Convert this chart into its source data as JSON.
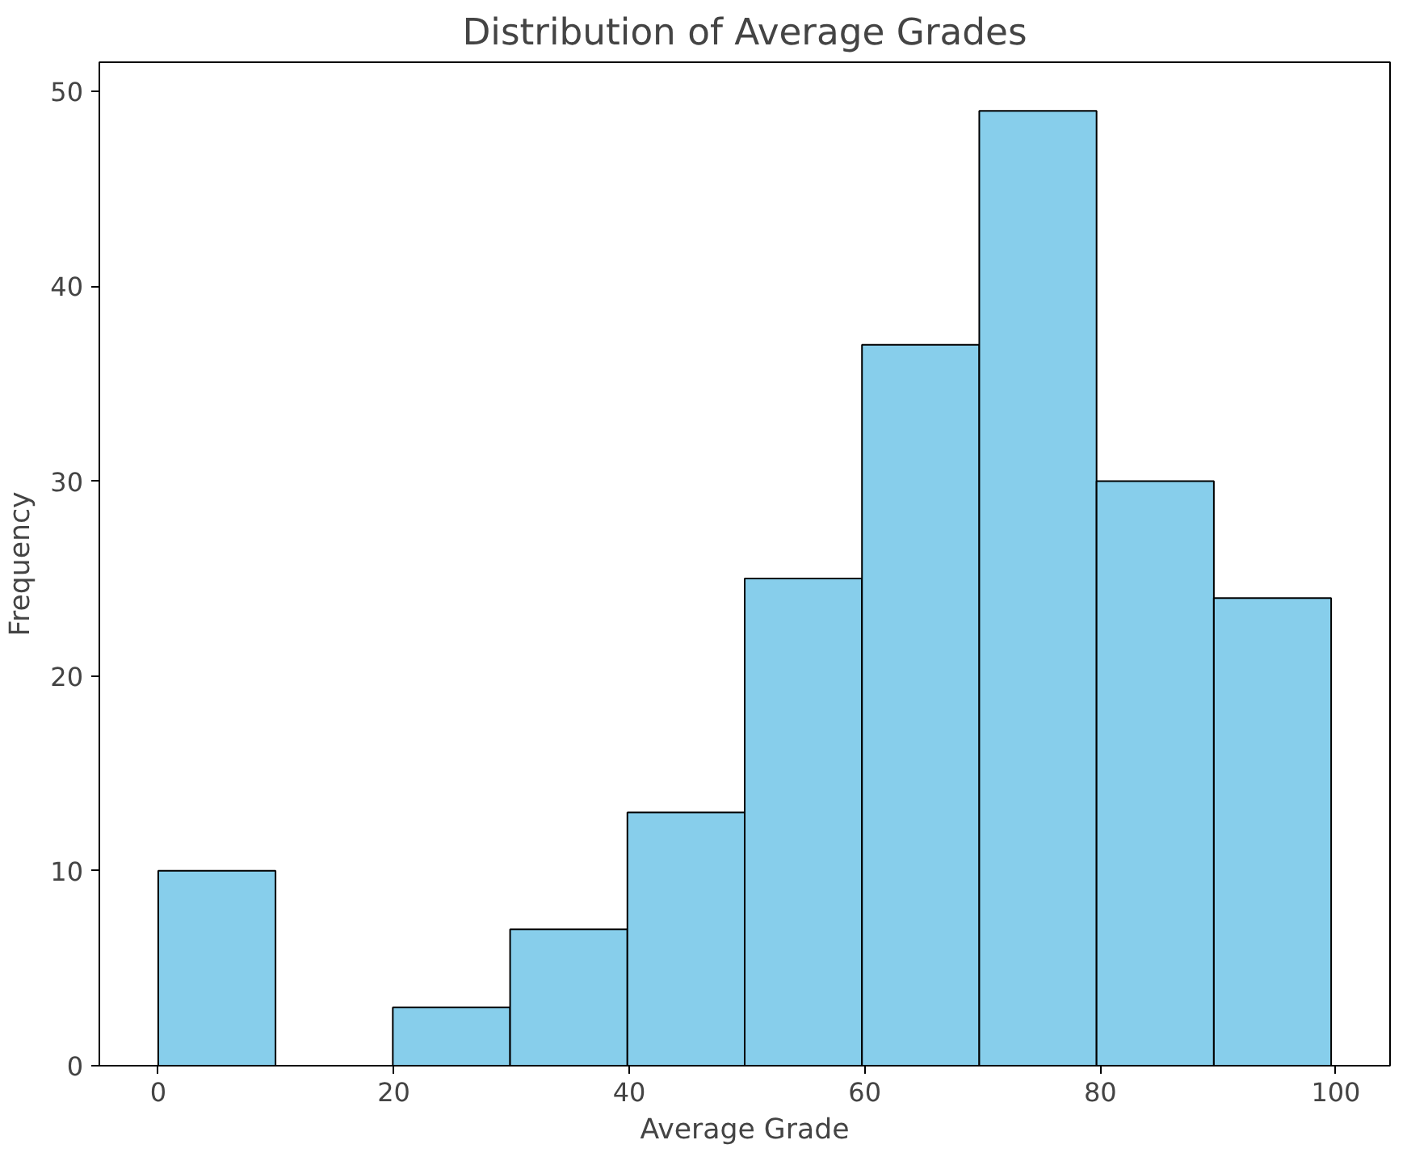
{
  "chart_data": {
    "type": "histogram",
    "title": "Distribution of Average Grades",
    "xlabel": "Average Grade",
    "ylabel": "Frequency",
    "bins": [
      0,
      9.96,
      19.92,
      29.88,
      39.84,
      49.8,
      59.76,
      69.72,
      79.68,
      89.64,
      99.6
    ],
    "values": [
      10,
      0,
      3,
      7,
      13,
      25,
      37,
      49,
      30,
      24
    ],
    "color": "#87ceeb",
    "xlim": [
      -5,
      104.6
    ],
    "ylim": [
      0,
      51.5
    ],
    "xticks": [
      0,
      20,
      40,
      60,
      80,
      100
    ],
    "yticks": [
      0,
      10,
      20,
      30,
      40,
      50
    ],
    "grid": false
  }
}
